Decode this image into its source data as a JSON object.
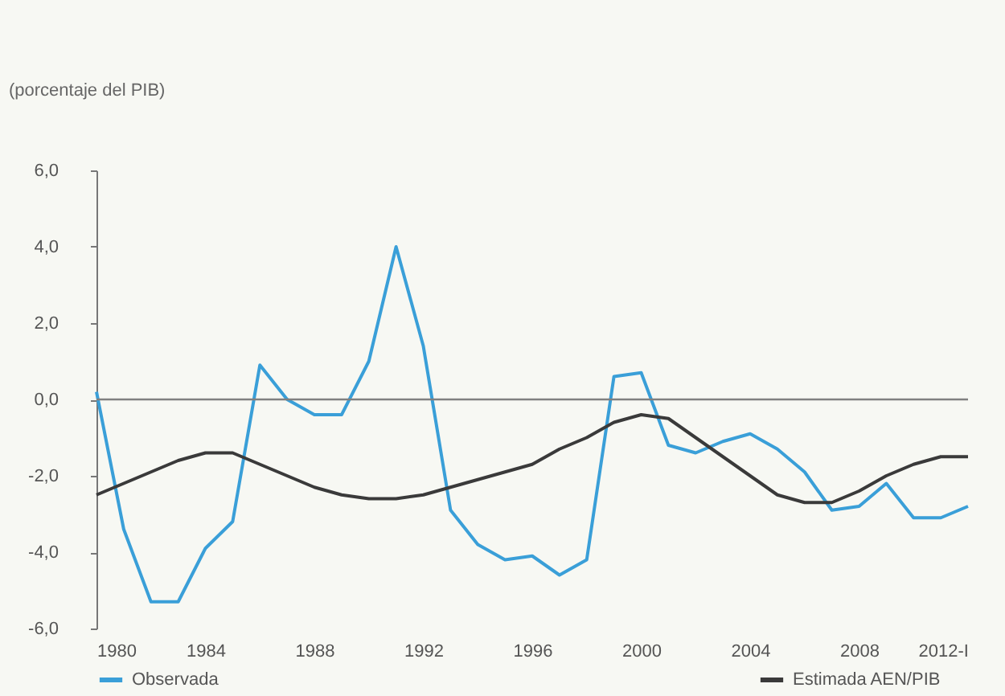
{
  "chart_data": {
    "type": "line",
    "ylabel": "(porcentaje del PIB)",
    "x": [
      1980,
      1981,
      1982,
      1983,
      1984,
      1985,
      1986,
      1987,
      1988,
      1989,
      1990,
      1991,
      1992,
      1993,
      1994,
      1995,
      1996,
      1997,
      1998,
      1999,
      2000,
      2001,
      2002,
      2003,
      2004,
      2005,
      2006,
      2007,
      2008,
      2009,
      2010,
      2011,
      2012
    ],
    "series": [
      {
        "name": "Observada",
        "color": "#3a9fd8",
        "values": [
          0.2,
          -3.4,
          -5.3,
          -5.3,
          -3.9,
          -3.2,
          0.9,
          0.0,
          -0.4,
          -0.4,
          1.0,
          4.0,
          1.4,
          -2.9,
          -3.8,
          -4.2,
          -4.1,
          -4.6,
          -4.2,
          0.6,
          0.7,
          -1.2,
          -1.4,
          -1.1,
          -0.9,
          -1.3,
          -1.9,
          -2.9,
          -2.8,
          -2.2,
          -3.1,
          -3.1,
          -2.8
        ]
      },
      {
        "name": "Estimada AEN/PIB",
        "color": "#3a3a3a",
        "values": [
          -2.5,
          -2.2,
          -1.9,
          -1.6,
          -1.4,
          -1.4,
          -1.7,
          -2.0,
          -2.3,
          -2.5,
          -2.6,
          -2.6,
          -2.5,
          -2.3,
          -2.1,
          -1.9,
          -1.7,
          -1.3,
          -1.0,
          -0.6,
          -0.4,
          -0.5,
          -1.0,
          -1.5,
          -2.0,
          -2.5,
          -2.7,
          -2.7,
          -2.4,
          -2.0,
          -1.7,
          -1.5,
          -1.5
        ]
      }
    ],
    "xlim": [
      1980,
      2012
    ],
    "xticks": [
      1980,
      1984,
      1988,
      1992,
      1996,
      2000,
      2004,
      2008,
      {
        "value": 2012,
        "label": "2012-I"
      }
    ],
    "ylim": [
      -6,
      6
    ],
    "yticks": [
      {
        "value": -6,
        "label": "-6,0"
      },
      {
        "value": -4,
        "label": "-4,0"
      },
      {
        "value": -2,
        "label": "-2,0"
      },
      {
        "value": 0,
        "label": "0,0"
      },
      {
        "value": 2,
        "label": "2,0"
      },
      {
        "value": 4,
        "label": "4,0"
      },
      {
        "value": 6,
        "label": "6,0"
      }
    ],
    "ref_lines": [
      {
        "axis": "y",
        "value": 0,
        "label": null,
        "color": "#808080"
      }
    ],
    "grid": false,
    "legend": "bottom",
    "marker": "none",
    "line_style": "solid"
  }
}
